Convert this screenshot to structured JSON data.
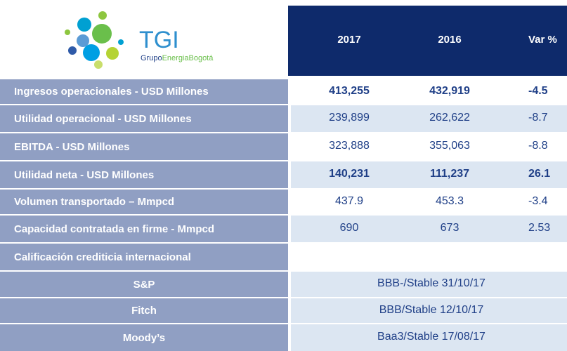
{
  "logo": {
    "name": "TGI",
    "group": "Grupo",
    "brand": "EnergiaBogotá"
  },
  "table": {
    "header": [
      "2017",
      "2016",
      "Var %"
    ],
    "rows": [
      {
        "label": "Ingresos operacionales - USD Millones",
        "values": [
          "413,255",
          "432,919",
          "-4.5"
        ],
        "bold": true
      },
      {
        "label": "Utilidad operacional - USD Millones",
        "values": [
          "239,899",
          "262,622",
          "-8.7"
        ],
        "bold": false
      },
      {
        "label": "EBITDA - USD Millones",
        "values": [
          "323,888",
          "355,063",
          "-8.8"
        ],
        "bold": false
      },
      {
        "label": "Utilidad neta - USD Millones",
        "values": [
          "140,231",
          "111,237",
          "26.1"
        ],
        "bold": true
      },
      {
        "label": "Volumen transportado – Mmpcd",
        "values": [
          "437.9",
          "453.3",
          "-3.4"
        ],
        "bold": false
      },
      {
        "label": "Capacidad contratada en firme - Mmpcd",
        "values": [
          "690",
          "673",
          "2.53"
        ],
        "bold": false
      }
    ],
    "rating_title": "Calificación crediticia internacional",
    "ratings": [
      {
        "agency": "S&P",
        "rating": "BBB-/Stable 31/10/17"
      },
      {
        "agency": "Fitch",
        "rating": "BBB/Stable 12/10/17"
      },
      {
        "agency": "Moody’s",
        "rating": "Baa3/Stable 17/08/17"
      }
    ]
  }
}
